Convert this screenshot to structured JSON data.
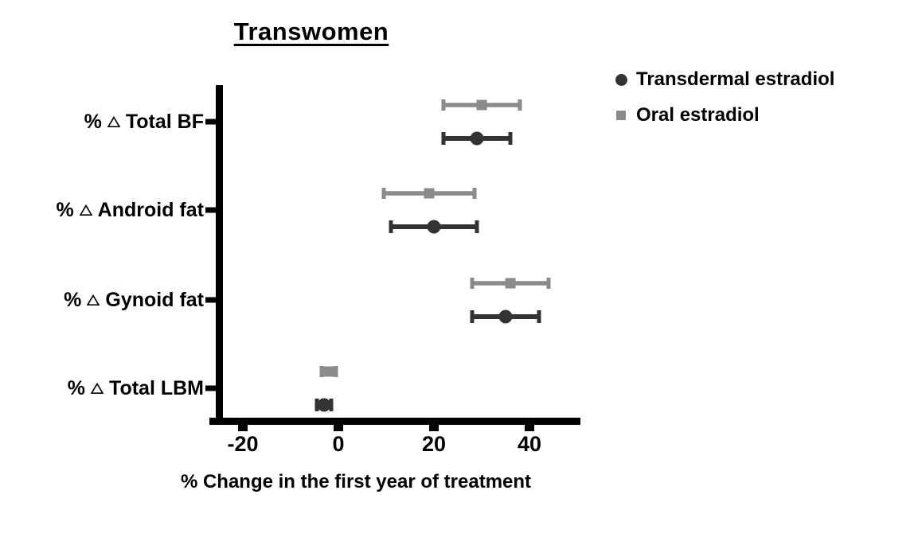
{
  "title": "Transwomen",
  "labels": {
    "cat_prefix": "%",
    "delta_symbol": "∆"
  },
  "category_parts": [
    {
      "prefix": "%",
      "name": "Total BF"
    },
    {
      "prefix": "%",
      "name": "Android fat"
    },
    {
      "prefix": "%",
      "name": "Gynoid fat"
    },
    {
      "prefix": "%",
      "name": "Total LBM"
    }
  ],
  "legend": {
    "position": "top-right",
    "items": [
      {
        "label": "Transdermal estradiol",
        "marker": "circle",
        "color": "#333333"
      },
      {
        "label": "Oral estradiol",
        "marker": "square",
        "color": "#8b8b8b"
      }
    ]
  },
  "chart_data": {
    "type": "scatter",
    "subtype": "horizontal-point-with-error-bars",
    "title": "Transwomen",
    "xlabel": "% Change in the first year of treatment",
    "ylabel": "",
    "categories": [
      "% ∆ Total BF",
      "% ∆ Android fat",
      "% ∆ Gynoid fat",
      "% ∆ Total LBM"
    ],
    "x_ticks": [
      -20,
      0,
      20,
      40
    ],
    "x_tick_labels": [
      "-20",
      "0",
      "20",
      "40"
    ],
    "xlim": [
      -27,
      50
    ],
    "grid": false,
    "series": [
      {
        "name": "Transdermal estradiol",
        "marker": "circle",
        "color": "#333333",
        "values": [
          {
            "category": "% ∆ Total BF",
            "mean": 29,
            "low": 22,
            "high": 36
          },
          {
            "category": "% ∆ Android fat",
            "mean": 20,
            "low": 11,
            "high": 29
          },
          {
            "category": "% ∆ Gynoid fat",
            "mean": 35,
            "low": 28,
            "high": 42
          },
          {
            "category": "% ∆ Total LBM",
            "mean": -3,
            "low": -4.5,
            "high": -1.5
          }
        ]
      },
      {
        "name": "Oral estradiol",
        "marker": "square",
        "color": "#8b8b8b",
        "values": [
          {
            "category": "% ∆ Total BF",
            "mean": 30,
            "low": 22,
            "high": 38
          },
          {
            "category": "% ∆ Android fat",
            "mean": 19,
            "low": 9.5,
            "high": 28.5
          },
          {
            "category": "% ∆ Gynoid fat",
            "mean": 36,
            "low": 28,
            "high": 44
          },
          {
            "category": "% ∆ Total LBM",
            "mean": -2,
            "low": -3.5,
            "high": -0.5
          }
        ]
      }
    ]
  }
}
